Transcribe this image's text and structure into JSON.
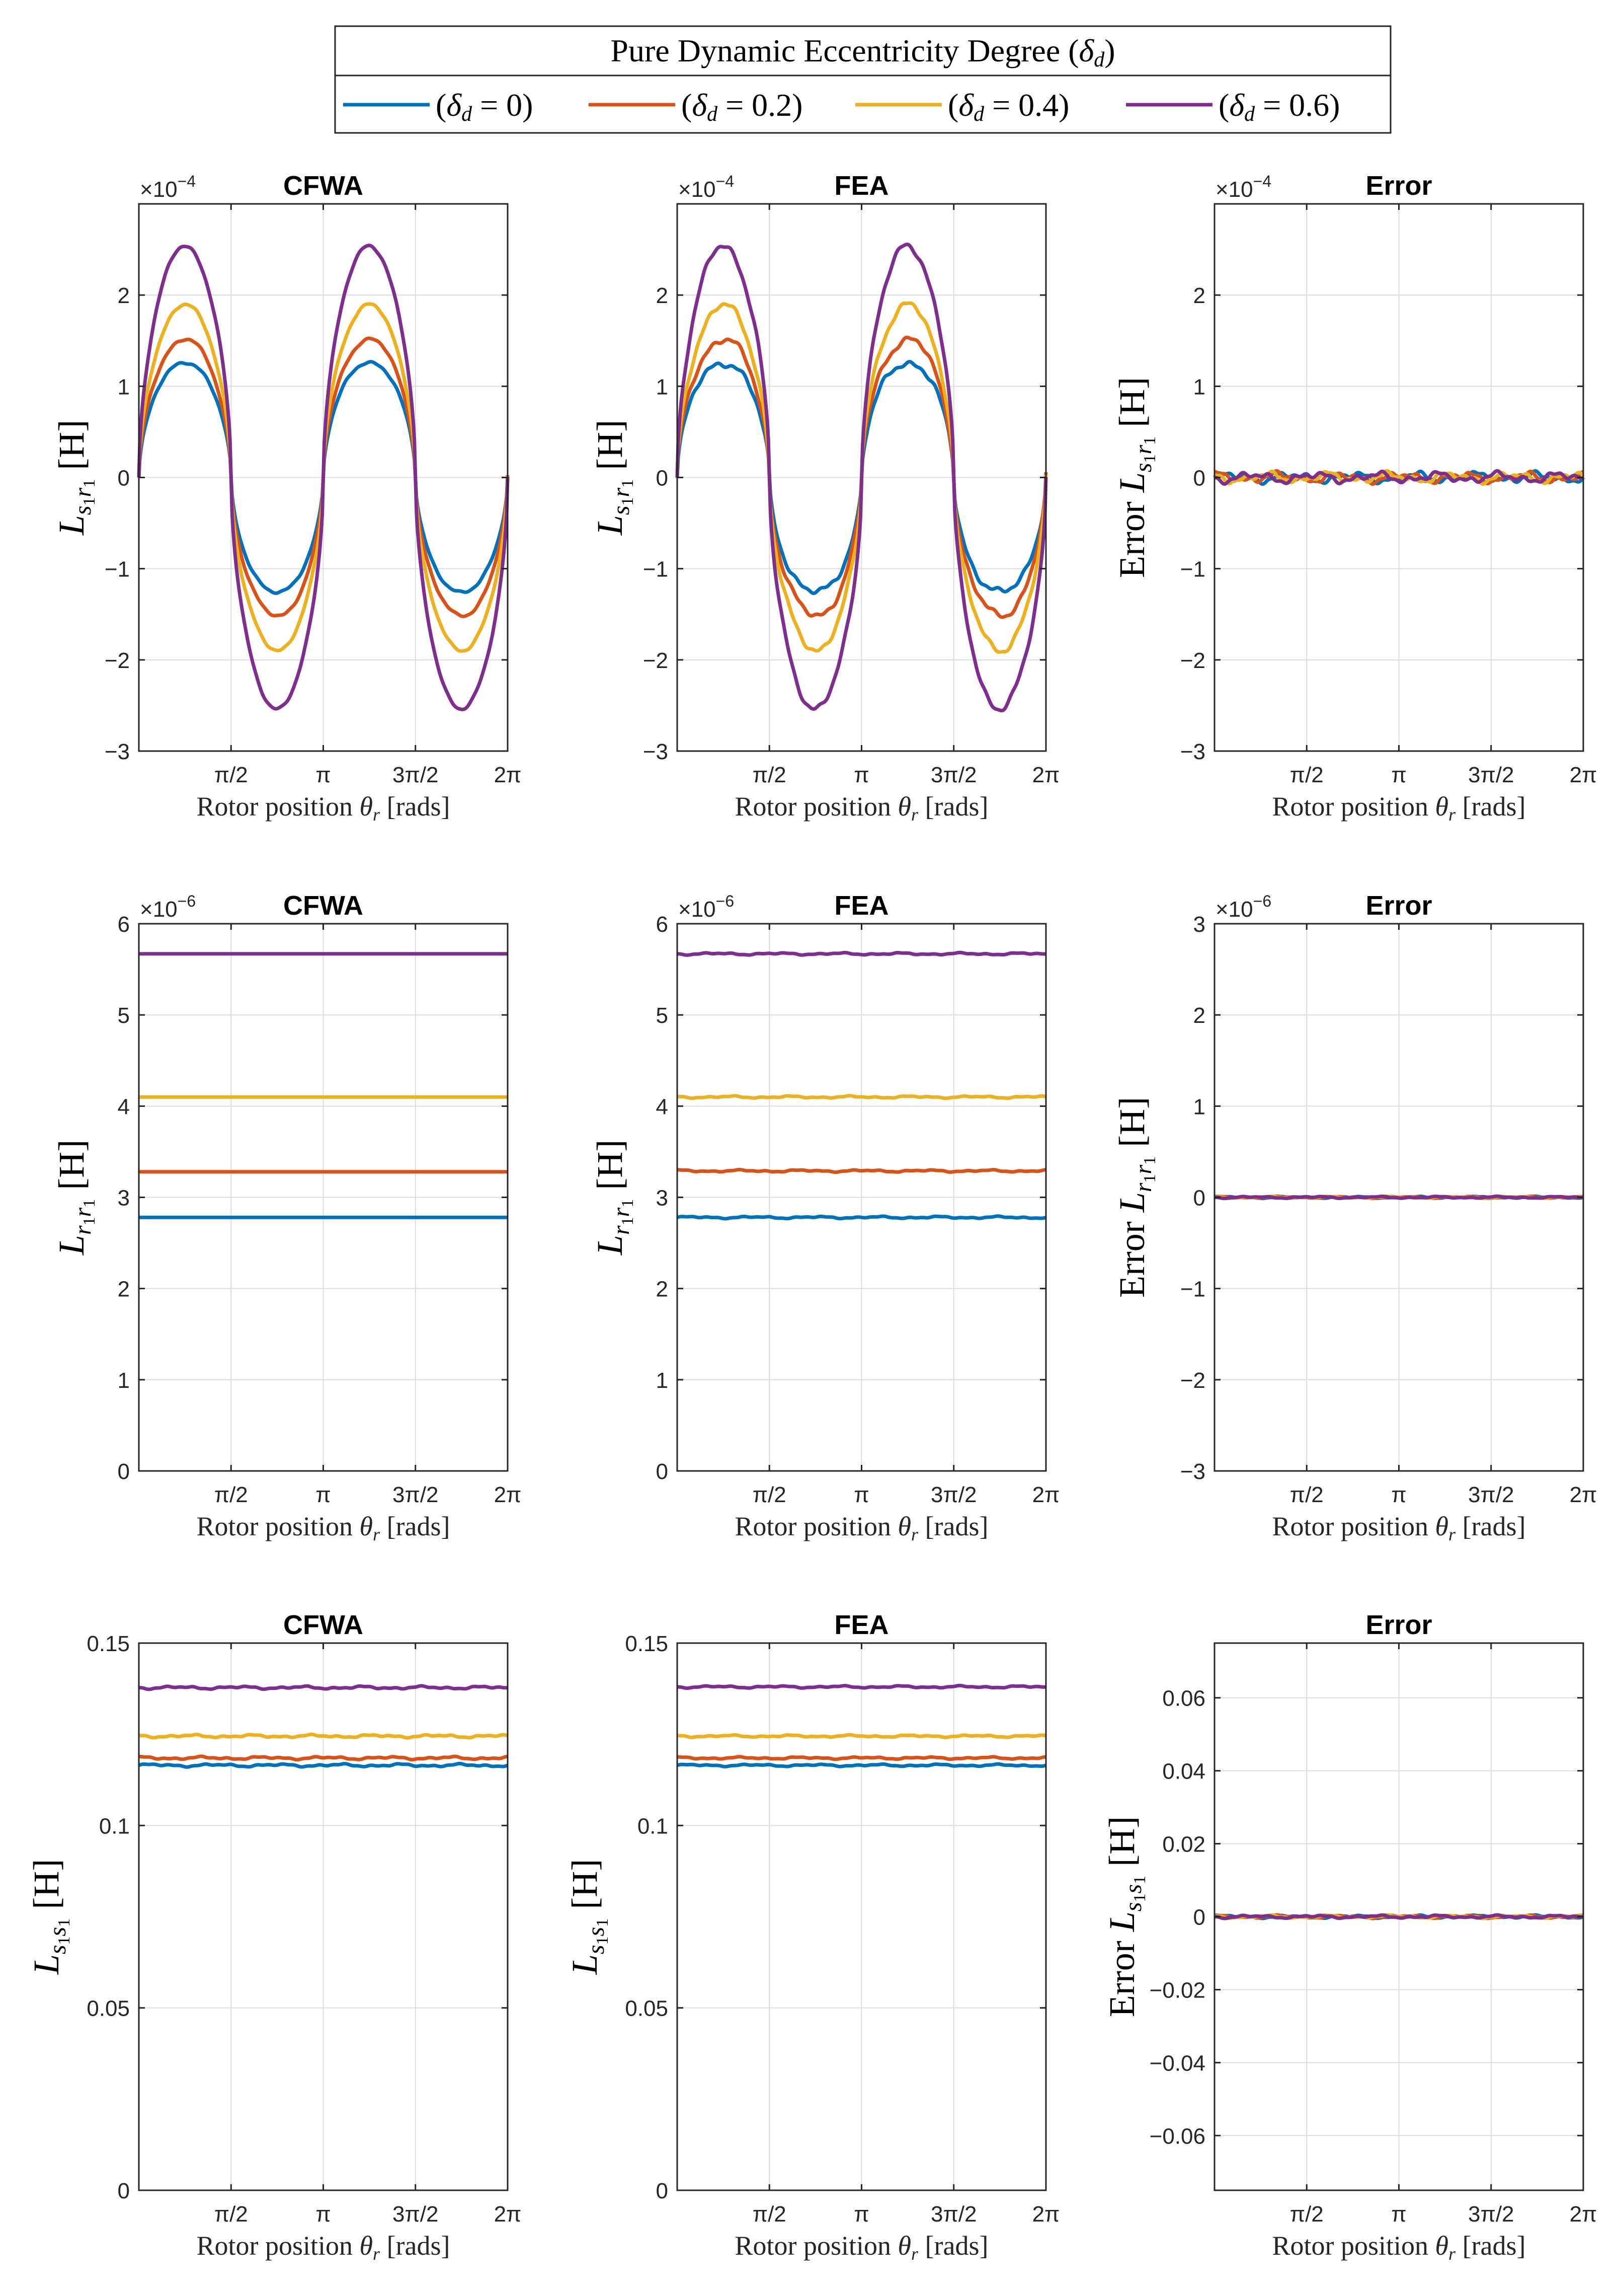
{
  "legend": {
    "title": "Pure Dynamic Eccentricity Degree (δ_d)",
    "title_prefix": "Pure Dynamic Eccentricity Degree (",
    "title_symbol": "δ",
    "title_sub": "d",
    "title_suffix": ")",
    "entries": [
      {
        "label": "(δ_d = 0)",
        "value": "0",
        "color": "#0072BD"
      },
      {
        "label": "(δ_d = 0.2)",
        "value": "0.2",
        "color": "#D95319"
      },
      {
        "label": "(δ_d = 0.4)",
        "value": "0.4",
        "color": "#EDB120"
      },
      {
        "label": "(δ_d = 0.6)",
        "value": "0.6",
        "color": "#7E2F8E"
      }
    ]
  },
  "chart_data": [
    {
      "id": "p11",
      "type": "line",
      "title": "CFWA",
      "xlabel": "Rotor position θ_r [rads]",
      "ylabel": "L_s1r1 [H]",
      "ylabel_prefix": "",
      "ysub": "s1r1",
      "multiplier": "×10^-4",
      "mult_exp": "−4",
      "xlim": [
        0,
        6.2832
      ],
      "ylim": [
        -3,
        3
      ],
      "yticks": [
        -3,
        -2,
        -1,
        0,
        1,
        2
      ],
      "ytick_labels": [
        "−3",
        "−2",
        "−1",
        "0",
        "1",
        "2"
      ],
      "xticks": [
        1.5708,
        3.1416,
        4.7124,
        6.2832
      ],
      "xtick_labels": [
        "π/2",
        "π",
        "3π/2",
        "2π"
      ],
      "curve": "sin",
      "amplitudes": [
        1.27,
        1.52,
        1.89,
        2.53
      ],
      "ripple": 0.02,
      "series_names": [
        "δd = 0",
        "δd = 0.2",
        "δd = 0.4",
        "δd = 0.6"
      ]
    },
    {
      "id": "p12",
      "type": "line",
      "title": "FEA",
      "xlabel": "Rotor position θ_r [rads]",
      "ylabel": "L_s1r1 [H]",
      "ylabel_prefix": "",
      "ysub": "s1r1",
      "multiplier": "×10^-4",
      "mult_exp": "−4",
      "xlim": [
        0,
        6.2832
      ],
      "ylim": [
        -3,
        3
      ],
      "yticks": [
        -3,
        -2,
        -1,
        0,
        1,
        2
      ],
      "ytick_labels": [
        "−3",
        "−2",
        "−1",
        "0",
        "1",
        "2"
      ],
      "xticks": [
        1.5708,
        3.1416,
        4.7124,
        6.2832
      ],
      "xtick_labels": [
        "π/2",
        "π",
        "3π/2",
        "2π"
      ],
      "curve": "sin",
      "amplitudes": [
        1.27,
        1.52,
        1.88,
        2.52
      ],
      "ripple": 0.05,
      "series_names": [
        "δd = 0",
        "δd = 0.2",
        "δd = 0.4",
        "δd = 0.6"
      ]
    },
    {
      "id": "p13",
      "type": "line",
      "title": "Error",
      "xlabel": "Rotor position θ_r [rads]",
      "ylabel": "Error L_s1r1 [H]",
      "ylabel_prefix": "Error ",
      "ysub": "s1r1",
      "multiplier": "×10^-4",
      "mult_exp": "−4",
      "xlim": [
        0,
        6.2832
      ],
      "ylim": [
        -3,
        3
      ],
      "yticks": [
        -3,
        -2,
        -1,
        0,
        1,
        2
      ],
      "ytick_labels": [
        "−3",
        "−2",
        "−1",
        "0",
        "1",
        "2"
      ],
      "xticks": [
        1.5708,
        3.1416,
        4.7124,
        6.2832
      ],
      "xtick_labels": [
        "π/2",
        "π",
        "3π/2",
        "2π"
      ],
      "curve": "flat",
      "levels": [
        0,
        0,
        0,
        0
      ],
      "ripple": 0.06,
      "series_names": [
        "δd = 0",
        "δd = 0.2",
        "δd = 0.4",
        "δd = 0.6"
      ]
    },
    {
      "id": "p21",
      "type": "line",
      "title": "CFWA",
      "xlabel": "Rotor position θ_r [rads]",
      "ylabel": "L_r1r1 [H]",
      "ylabel_prefix": "",
      "ysub": "r1r1",
      "multiplier": "×10^-6",
      "mult_exp": "−6",
      "xlim": [
        0,
        6.2832
      ],
      "ylim": [
        0,
        6
      ],
      "yticks": [
        0,
        1,
        2,
        3,
        4,
        5,
        6
      ],
      "ytick_labels": [
        "0",
        "1",
        "2",
        "3",
        "4",
        "5",
        "6"
      ],
      "xticks": [
        1.5708,
        3.1416,
        4.7124,
        6.2832
      ],
      "xtick_labels": [
        "π/2",
        "π",
        "3π/2",
        "2π"
      ],
      "curve": "flat",
      "levels": [
        2.78,
        3.28,
        4.1,
        5.67
      ],
      "ripple": 0.0,
      "series_names": [
        "δd = 0",
        "δd = 0.2",
        "δd = 0.4",
        "δd = 0.6"
      ]
    },
    {
      "id": "p22",
      "type": "line",
      "title": "FEA",
      "xlabel": "Rotor position θ_r [rads]",
      "ylabel": "L_r1r1 [H]",
      "ylabel_prefix": "",
      "ysub": "r1r1",
      "multiplier": "×10^-6",
      "mult_exp": "−6",
      "xlim": [
        0,
        6.2832
      ],
      "ylim": [
        0,
        6
      ],
      "yticks": [
        0,
        1,
        2,
        3,
        4,
        5,
        6
      ],
      "ytick_labels": [
        "0",
        "1",
        "2",
        "3",
        "4",
        "5",
        "6"
      ],
      "xticks": [
        1.5708,
        3.1416,
        4.7124,
        6.2832
      ],
      "xtick_labels": [
        "π/2",
        "π",
        "3π/2",
        "2π"
      ],
      "curve": "flat",
      "levels": [
        2.78,
        3.29,
        4.1,
        5.67
      ],
      "ripple": 0.012,
      "series_names": [
        "δd = 0",
        "δd = 0.2",
        "δd = 0.4",
        "δd = 0.6"
      ]
    },
    {
      "id": "p23",
      "type": "line",
      "title": "Error",
      "xlabel": "Rotor position θ_r [rads]",
      "ylabel": "Error L_r1r1 [H]",
      "ylabel_prefix": "Error ",
      "ysub": "r1r1",
      "multiplier": "×10^-6",
      "mult_exp": "−6",
      "xlim": [
        0,
        6.2832
      ],
      "ylim": [
        -3,
        3
      ],
      "yticks": [
        -3,
        -2,
        -1,
        0,
        1,
        2,
        3
      ],
      "ytick_labels": [
        "−3",
        "−2",
        "−1",
        "0",
        "1",
        "2",
        "3"
      ],
      "xticks": [
        1.5708,
        3.1416,
        4.7124,
        6.2832
      ],
      "xtick_labels": [
        "π/2",
        "π",
        "3π/2",
        "2π"
      ],
      "curve": "flat",
      "levels": [
        0,
        0,
        0,
        0
      ],
      "ripple": 0.01,
      "series_names": [
        "δd = 0",
        "δd = 0.2",
        "δd = 0.4",
        "δd = 0.6"
      ]
    },
    {
      "id": "p31",
      "type": "line",
      "title": "CFWA",
      "xlabel": "Rotor position θ_r [rads]",
      "ylabel": "L_s1s1 [H]",
      "ylabel_prefix": "",
      "ysub": "s1s1",
      "multiplier": "",
      "mult_exp": "",
      "xlim": [
        0,
        6.2832
      ],
      "ylim": [
        0,
        0.15
      ],
      "yticks": [
        0,
        0.05,
        0.1,
        0.15
      ],
      "ytick_labels": [
        "0",
        "0.05",
        "0.1",
        "0.15"
      ],
      "xticks": [
        1.5708,
        3.1416,
        4.7124,
        6.2832
      ],
      "xtick_labels": [
        "π/2",
        "π",
        "3π/2",
        "2π"
      ],
      "curve": "flat",
      "levels": [
        0.1165,
        0.1185,
        0.1245,
        0.1378
      ],
      "ripple": 0.0004,
      "series_names": [
        "δd = 0",
        "δd = 0.2",
        "δd = 0.4",
        "δd = 0.6"
      ]
    },
    {
      "id": "p32",
      "type": "line",
      "title": "FEA",
      "xlabel": "Rotor position θ_r [rads]",
      "ylabel": "L_s1s1 [H]",
      "ylabel_prefix": "",
      "ysub": "s1s1",
      "multiplier": "",
      "mult_exp": "",
      "xlim": [
        0,
        6.2832
      ],
      "ylim": [
        0,
        0.15
      ],
      "yticks": [
        0,
        0.05,
        0.1,
        0.15
      ],
      "ytick_labels": [
        "0",
        "0.05",
        "0.1",
        "0.15"
      ],
      "xticks": [
        1.5708,
        3.1416,
        4.7124,
        6.2832
      ],
      "xtick_labels": [
        "π/2",
        "π",
        "3π/2",
        "2π"
      ],
      "curve": "flat",
      "levels": [
        0.1165,
        0.1185,
        0.1245,
        0.138
      ],
      "ripple": 0.0003,
      "series_names": [
        "δd = 0",
        "δd = 0.2",
        "δd = 0.4",
        "δd = 0.6"
      ]
    },
    {
      "id": "p33",
      "type": "line",
      "title": "Error",
      "xlabel": "Rotor position θ_r [rads]",
      "ylabel": "Error L_s1s1 [H]",
      "ylabel_prefix": "Error ",
      "ysub": "s1s1",
      "multiplier": "",
      "mult_exp": "",
      "xlim": [
        0,
        6.2832
      ],
      "ylim": [
        -0.075,
        0.075
      ],
      "yticks": [
        -0.06,
        -0.04,
        -0.02,
        0,
        0.02,
        0.04,
        0.06
      ],
      "ytick_labels": [
        "−0.06",
        "−0.04",
        "−0.02",
        "0",
        "0.02",
        "0.04",
        "0.06"
      ],
      "xticks": [
        1.5708,
        3.1416,
        4.7124,
        6.2832
      ],
      "xtick_labels": [
        "π/2",
        "π",
        "3π/2",
        "2π"
      ],
      "curve": "flat",
      "levels": [
        0,
        0,
        0,
        0
      ],
      "ripple": 0.0004,
      "series_names": [
        "δd = 0",
        "δd = 0.2",
        "δd = 0.4",
        "δd = 0.6"
      ]
    }
  ]
}
